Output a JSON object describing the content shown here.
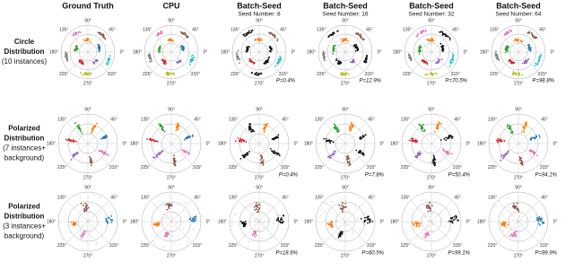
{
  "columns": [
    {
      "title": "Ground Truth"
    },
    {
      "title": "CPU"
    },
    {
      "title": "Batch-Seed",
      "subtitle": "Seed Number: 8"
    },
    {
      "title": "Batch-Seed",
      "subtitle": "Seed Number: 16"
    },
    {
      "title": "Batch-Seed",
      "subtitle": "Seed Number: 32"
    },
    {
      "title": "Batch-Seed",
      "subtitle": "Seed Number: 64"
    }
  ],
  "rows": [
    {
      "label": [
        "Circle",
        "Distribution",
        "(10 instances)"
      ],
      "p_values": [
        "P=0.4%",
        "P=12.9%",
        "P=70.5%",
        "P=98.8%"
      ]
    },
    {
      "label": [
        "Polarized",
        "Distribution",
        "(7 instances+",
        "background)"
      ],
      "p_values": [
        "P=0.4%",
        "P=7.8%",
        "P=50.4%",
        "P=94.1%"
      ]
    },
    {
      "label": [
        "Polarized",
        "Distribution",
        "(3 instances+",
        "background)"
      ],
      "p_values": [
        "P=18.6%",
        "P=60.5%",
        "P=99.1%",
        "P=99.9%"
      ]
    }
  ],
  "angle_labels": [
    "0°",
    "45°",
    "90°",
    "135°",
    "180°",
    "225°",
    "270°",
    "315°"
  ]
}
